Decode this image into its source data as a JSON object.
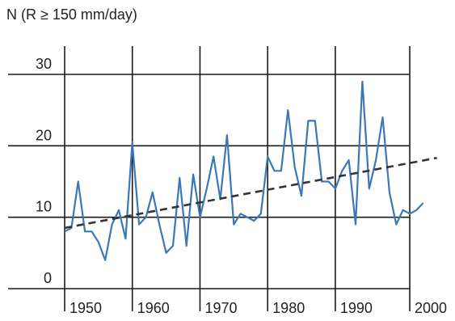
{
  "chart_data": {
    "type": "line",
    "title": "",
    "ylabel": "N (R ≥ 150 mm/day)",
    "xlabel": "",
    "xlim": [
      1944,
      2000
    ],
    "ylim": [
      0,
      30
    ],
    "x_ticks": [
      1950,
      1960,
      1970,
      1980,
      1990,
      2000
    ],
    "x_tick_labels": [
      "1950",
      "1960",
      "1970",
      "1980",
      "1990",
      "2000"
    ],
    "y_ticks": [
      0,
      10,
      20,
      30
    ],
    "y_tick_labels": [
      "0",
      "10",
      "20",
      "30"
    ],
    "grid": true,
    "series": [
      {
        "style": "solid",
        "color": "#3a78b8",
        "x": [
          1944,
          1945,
          1946,
          1947,
          1948,
          1949,
          1950,
          1951,
          1952,
          1953,
          1954,
          1955,
          1956,
          1957,
          1958,
          1959,
          1960,
          1961,
          1962,
          1963,
          1964,
          1965,
          1966,
          1967,
          1968,
          1969,
          1970,
          1971,
          1972,
          1973,
          1974,
          1975,
          1976,
          1977,
          1978,
          1979,
          1980,
          1981,
          1982,
          1983,
          1984,
          1985,
          1986,
          1987,
          1988,
          1989,
          1990,
          1991,
          1992,
          1993,
          1994,
          1995,
          1996,
          1997
        ],
        "y": [
          8,
          8.5,
          15,
          8,
          8,
          6.5,
          4,
          9,
          11,
          7,
          20.5,
          9,
          10,
          13.5,
          9,
          5,
          6,
          15.5,
          6,
          16,
          10,
          14,
          18.5,
          12.5,
          21.5,
          9,
          10.5,
          10,
          9.5,
          10.5,
          18.5,
          16.5,
          16.5,
          25,
          17,
          13,
          23.5,
          23.5,
          15,
          15,
          14,
          16.5,
          18,
          9,
          29,
          14,
          18,
          24,
          13.5,
          9,
          11,
          10.5,
          11,
          12
        ]
      },
      {
        "style": "dashed",
        "color": "#333333",
        "x": [
          1944,
          1999
        ],
        "y": [
          8.5,
          18.3
        ]
      }
    ]
  }
}
